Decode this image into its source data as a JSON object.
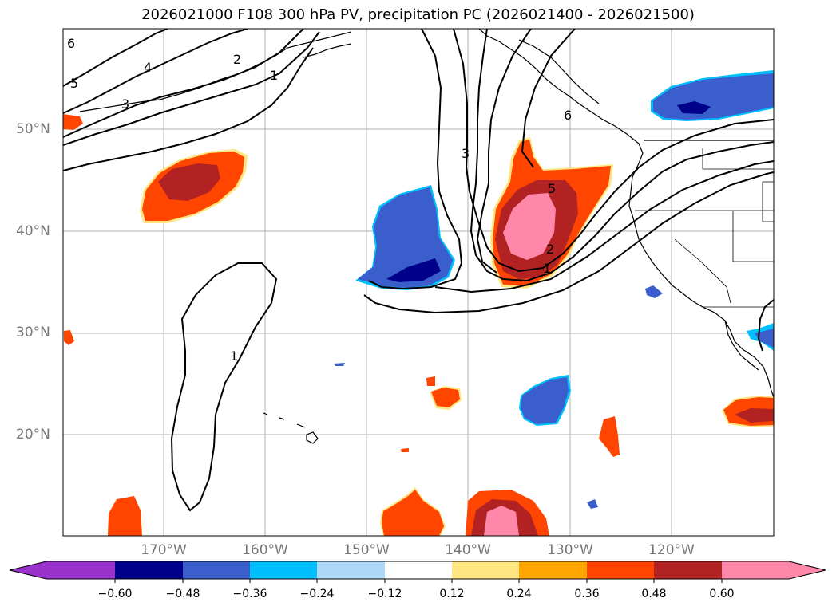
{
  "title": "2026021000 F108 300 hPa PV, precipitation PC (2026021400 - 2026021500)",
  "axes": {
    "lat_labels": [
      "50°N",
      "40°N",
      "30°N",
      "20°N"
    ],
    "lon_labels": [
      "170°W",
      "160°W",
      "150°W",
      "140°W",
      "130°W",
      "120°W"
    ]
  },
  "contour_labels": [
    "6",
    "5",
    "4",
    "3",
    "2",
    "1",
    "3",
    "6",
    "5",
    "2",
    "1",
    "1"
  ],
  "colorbar": {
    "ticks": [
      "−0.60",
      "−0.48",
      "−0.36",
      "−0.24",
      "−0.12",
      "0.12",
      "0.24",
      "0.36",
      "0.48",
      "0.60"
    ],
    "colors": [
      "#9933cc",
      "#00008b",
      "#3a5fcd",
      "#00bfff",
      "#add8f8",
      "#ffffff",
      "#ffe680",
      "#ffa500",
      "#ff4500",
      "#b22222",
      "#ff88aa",
      "#ff88aa"
    ]
  }
}
